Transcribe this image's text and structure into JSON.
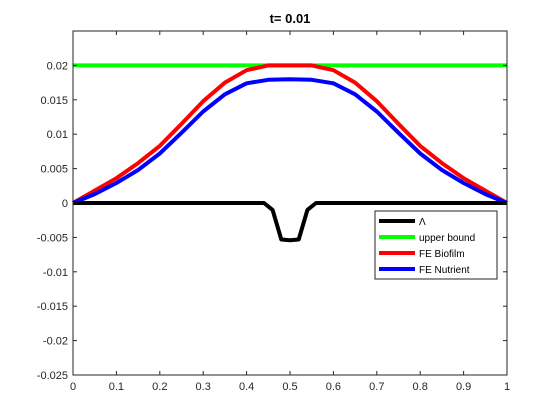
{
  "chart_data": {
    "type": "line",
    "title": "t=  0.01",
    "xlabel": "",
    "ylabel": "",
    "xlim": [
      0,
      1
    ],
    "ylim": [
      -0.025,
      0.025
    ],
    "x_ticks": [
      0,
      0.1,
      0.2,
      0.3,
      0.4,
      0.5,
      0.6,
      0.7,
      0.8,
      0.9,
      1
    ],
    "x_tick_labels": [
      "0",
      "0.1",
      "0.2",
      "0.3",
      "0.4",
      "0.5",
      "0.6",
      "0.7",
      "0.8",
      "0.9",
      "1"
    ],
    "y_ticks": [
      -0.025,
      -0.02,
      -0.015,
      -0.01,
      -0.005,
      0,
      0.005,
      0.01,
      0.015,
      0.02
    ],
    "y_tick_labels": [
      "-0.025",
      "-0.02",
      "-0.015",
      "-0.01",
      "-0.005",
      "0",
      "0.005",
      "0.01",
      "0.015",
      "0.02"
    ],
    "grid": false,
    "legend_position": "lower-right",
    "series": [
      {
        "name": "Λ",
        "color": "#000000",
        "x": [
          0,
          0.1,
          0.2,
          0.3,
          0.4,
          0.44,
          0.46,
          0.48,
          0.5,
          0.52,
          0.54,
          0.56,
          0.6,
          0.7,
          0.8,
          0.9,
          1
        ],
        "y": [
          0,
          0,
          0,
          0,
          0,
          0,
          -0.001,
          -0.0053,
          -0.0054,
          -0.0053,
          -0.001,
          0,
          0,
          0,
          0,
          0,
          0
        ]
      },
      {
        "name": "upper bound",
        "color": "#00ff00",
        "x": [
          0,
          1
        ],
        "y": [
          0.02,
          0.02
        ]
      },
      {
        "name": "FE Biofilm",
        "color": "#ff0000",
        "x": [
          0,
          0.05,
          0.1,
          0.15,
          0.2,
          0.25,
          0.3,
          0.35,
          0.4,
          0.45,
          0.5,
          0.55,
          0.6,
          0.65,
          0.7,
          0.75,
          0.8,
          0.85,
          0.9,
          0.95,
          1
        ],
        "y": [
          0,
          0.0018,
          0.0036,
          0.0058,
          0.0083,
          0.0115,
          0.0148,
          0.0175,
          0.0193,
          0.02,
          0.02,
          0.02,
          0.0193,
          0.0175,
          0.0148,
          0.0115,
          0.0083,
          0.0058,
          0.0036,
          0.0018,
          0
        ]
      },
      {
        "name": "FE Nutrient",
        "color": "#0000ff",
        "x": [
          0,
          0.05,
          0.1,
          0.15,
          0.2,
          0.25,
          0.3,
          0.35,
          0.4,
          0.45,
          0.5,
          0.55,
          0.6,
          0.65,
          0.7,
          0.75,
          0.8,
          0.85,
          0.9,
          0.95,
          1
        ],
        "y": [
          0,
          0.0013,
          0.0029,
          0.0048,
          0.0072,
          0.0102,
          0.0133,
          0.0158,
          0.0174,
          0.0179,
          0.018,
          0.0179,
          0.0174,
          0.0158,
          0.0133,
          0.0102,
          0.0072,
          0.0048,
          0.0029,
          0.0013,
          0
        ]
      }
    ]
  }
}
